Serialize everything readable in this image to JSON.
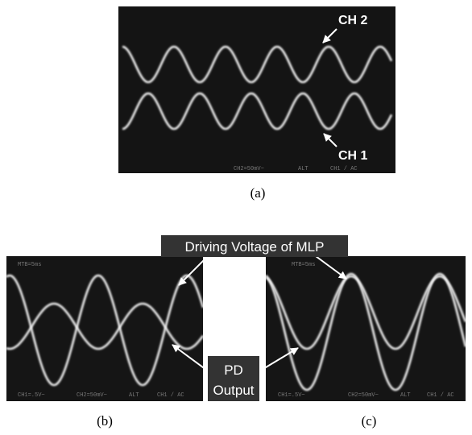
{
  "panels": [
    {
      "label": "(a)",
      "annotations": [
        "CH 2",
        "CH 1"
      ],
      "screen_text": [
        "CH2=50mV~",
        "ALT",
        "CH1 / AC"
      ]
    },
    {
      "label": "(b)",
      "screen_text": [
        "MTB=5ms",
        "CH1=.5V~",
        "CH2=50mV~",
        "ALT",
        "CH1 / AC"
      ]
    },
    {
      "label": "(c)",
      "screen_text": [
        "MTB=5ms",
        "CH1=.5V~",
        "CH2=50mV~",
        "ALT",
        "CH1 / AC"
      ]
    }
  ],
  "callouts": {
    "driving": "Driving Voltage of MLP",
    "pd": [
      "PD",
      "Output"
    ]
  }
}
